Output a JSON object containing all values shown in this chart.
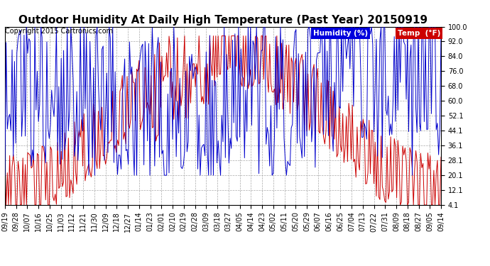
{
  "title": "Outdoor Humidity At Daily High Temperature (Past Year) 20150919",
  "copyright": "Copyright 2015 Cartronics.com",
  "legend_humidity_label": "Humidity (%)",
  "legend_temp_label": "Temp  (°F)",
  "legend_humidity_bg": "#0000dd",
  "legend_temp_bg": "#cc0000",
  "humidity_color": "#0000cc",
  "temp_color": "#cc0000",
  "bg_color": "#ffffff",
  "plot_bg_color": "#ffffff",
  "grid_color": "#aaaaaa",
  "yticks": [
    4.1,
    12.1,
    20.1,
    28.1,
    36.1,
    44.1,
    52.1,
    60.0,
    68.0,
    76.0,
    84.0,
    92.0,
    100.0
  ],
  "xtick_labels": [
    "09/19",
    "09/28",
    "10/07",
    "10/16",
    "10/25",
    "11/03",
    "11/12",
    "11/21",
    "11/30",
    "12/09",
    "12/18",
    "12/27",
    "01/14",
    "01/23",
    "02/01",
    "02/10",
    "02/19",
    "02/28",
    "03/09",
    "03/18",
    "03/27",
    "04/05",
    "04/14",
    "04/23",
    "05/02",
    "05/11",
    "05/20",
    "05/29",
    "06/07",
    "06/16",
    "06/25",
    "07/04",
    "07/13",
    "07/22",
    "07/31",
    "08/09",
    "08/18",
    "08/27",
    "09/05",
    "09/14"
  ],
  "ymin": 4.1,
  "ymax": 100.0,
  "title_fontsize": 11,
  "copyright_fontsize": 7,
  "tick_fontsize": 7,
  "line_width": 0.7
}
